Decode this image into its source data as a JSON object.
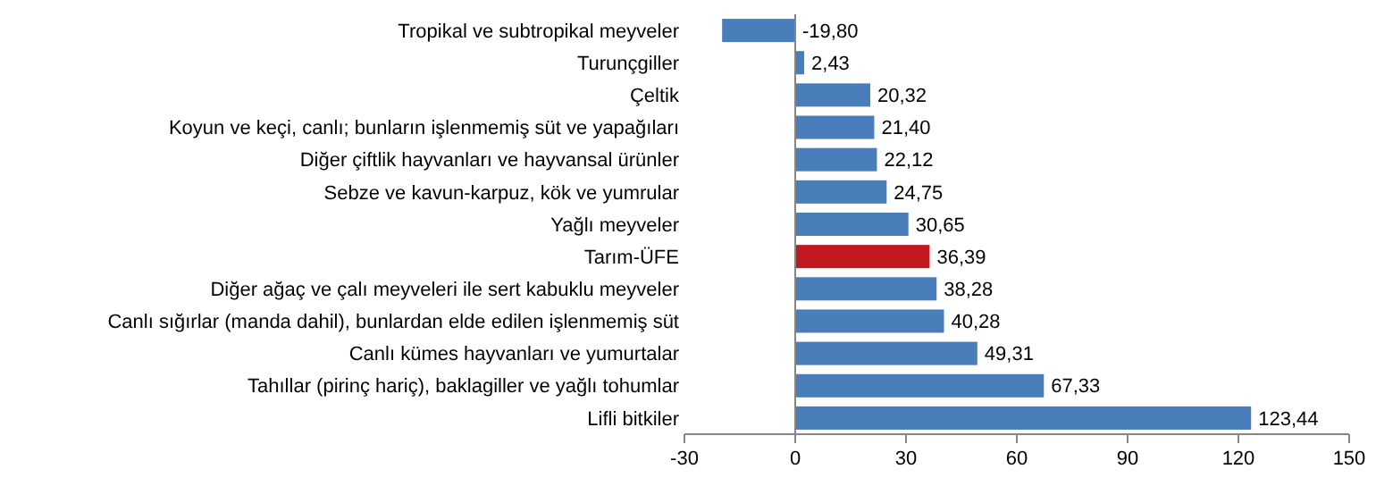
{
  "chart_data": {
    "type": "bar",
    "orientation": "horizontal",
    "categories": [
      "Tropikal ve subtropikal meyveler",
      "Turunçgiller",
      "Çeltik",
      "Koyun ve keçi, canlı; bunların işlenmemiş süt ve yapağıları",
      "Diğer çiftlik hayvanları ve hayvansal ürünler",
      "Sebze ve kavun-karpuz, kök ve yumrular",
      "Yağlı meyveler",
      "Tarım-ÜFE",
      "Diğer ağaç ve çalı meyveleri ile sert kabuklu meyveler",
      "Canlı sığırlar (manda dahil), bunlardan elde edilen işlenmemiş süt",
      "Canlı kümes hayvanları ve yumurtalar",
      "Tahıllar (pirinç hariç), baklagiller ve yağlı tohumlar",
      "Lifli bitkiler"
    ],
    "values": [
      -19.8,
      2.43,
      20.32,
      21.4,
      22.12,
      24.75,
      30.65,
      36.39,
      38.28,
      40.28,
      49.31,
      67.33,
      123.44
    ],
    "colors": [
      "#4a7ebb",
      "#4a7ebb",
      "#4a7ebb",
      "#4a7ebb",
      "#4a7ebb",
      "#4a7ebb",
      "#4a7ebb",
      "#c0191f",
      "#4a7ebb",
      "#4a7ebb",
      "#4a7ebb",
      "#4a7ebb",
      "#4a7ebb"
    ],
    "value_labels": [
      "-19,80",
      "2,43",
      "20,32",
      "21,40",
      "22,12",
      "24,75",
      "30,65",
      "36,39",
      "38,28",
      "40,28",
      "49,31",
      "67,33",
      "123,44"
    ],
    "xlim": [
      -30,
      150
    ],
    "xticks": [
      -30,
      0,
      30,
      60,
      90,
      120,
      150
    ]
  }
}
